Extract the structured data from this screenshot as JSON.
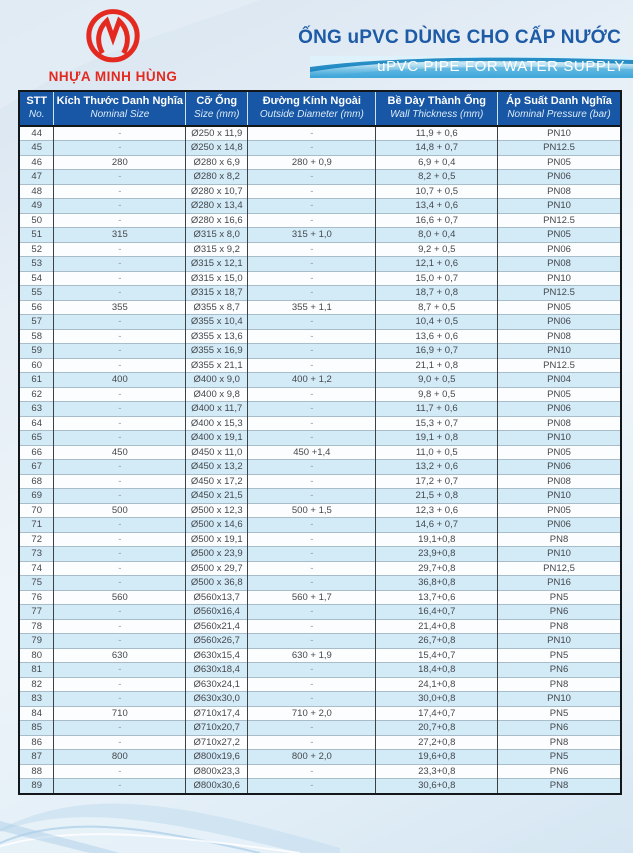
{
  "brand": {
    "name": "NHỰA MINH HÙNG",
    "logo_color": "#e42a20"
  },
  "header": {
    "title_vi": "ỐNG uPVC DÙNG CHO CẤP NƯỚC",
    "title_en": "uPVC PIPE FOR WATER SUPPLY"
  },
  "colors": {
    "accent_blue": "#1757a5",
    "title_blue": "#1d5ba6",
    "brand_red": "#e42a20",
    "alt_row": "#d3eaf7",
    "banner_wave": "#1583c0"
  },
  "table": {
    "columns": [
      {
        "vi": "STT",
        "en": "No."
      },
      {
        "vi": "Kích Thước Danh Nghĩa",
        "en": "Nominal Size"
      },
      {
        "vi": "Cỡ Ống",
        "en": "Size (mm)"
      },
      {
        "vi": "Đường Kính Ngoài",
        "en": "Outside Diameter (mm)"
      },
      {
        "vi": "Bề Dày Thành Ống",
        "en": "Wall Thickness (mm)"
      },
      {
        "vi": "Áp Suất Danh Nghĩa",
        "en": "Nominal Pressure (bar)"
      }
    ],
    "rows": [
      [
        "44",
        "-",
        "Ø250 x 11,9",
        "-",
        "11,9 + 0,6",
        "PN10"
      ],
      [
        "45",
        "-",
        "Ø250 x 14,8",
        "-",
        "14,8 + 0,7",
        "PN12.5"
      ],
      [
        "46",
        "280",
        "Ø280 x 6,9",
        "280 + 0,9",
        "6,9 + 0,4",
        "PN05"
      ],
      [
        "47",
        "-",
        "Ø280 x 8,2",
        "-",
        "8,2 + 0,5",
        "PN06"
      ],
      [
        "48",
        "-",
        "Ø280 x 10,7",
        "-",
        "10,7 + 0,5",
        "PN08"
      ],
      [
        "49",
        "-",
        "Ø280 x 13,4",
        "-",
        "13,4 + 0,6",
        "PN10"
      ],
      [
        "50",
        "-",
        "Ø280 x 16,6",
        "-",
        "16,6 + 0,7",
        "PN12.5"
      ],
      [
        "51",
        "315",
        "Ø315 x 8,0",
        "315 + 1,0",
        "8,0 + 0,4",
        "PN05"
      ],
      [
        "52",
        "-",
        "Ø315 x 9,2",
        "-",
        "9,2 + 0,5",
        "PN06"
      ],
      [
        "53",
        "-",
        "Ø315 x 12,1",
        "-",
        "12,1 + 0,6",
        "PN08"
      ],
      [
        "54",
        "-",
        "Ø315 x 15,0",
        "-",
        "15,0 + 0,7",
        "PN10"
      ],
      [
        "55",
        "-",
        "Ø315 x 18,7",
        "-",
        "18,7 + 0,8",
        "PN12.5"
      ],
      [
        "56",
        "355",
        "Ø355 x 8,7",
        "355 + 1,1",
        "8,7 + 0,5",
        "PN05"
      ],
      [
        "57",
        "-",
        "Ø355 x 10,4",
        "-",
        "10,4 + 0,5",
        "PN06"
      ],
      [
        "58",
        "-",
        "Ø355 x 13,6",
        "-",
        "13,6 + 0,6",
        "PN08"
      ],
      [
        "59",
        "-",
        "Ø355 x 16,9",
        "-",
        "16,9 + 0,7",
        "PN10"
      ],
      [
        "60",
        "-",
        "Ø355 x 21,1",
        "-",
        "21,1 + 0,8",
        "PN12.5"
      ],
      [
        "61",
        "400",
        "Ø400 x 9,0",
        "400 + 1,2",
        "9,0 + 0,5",
        "PN04"
      ],
      [
        "62",
        "-",
        "Ø400 x 9,8",
        "-",
        "9,8 + 0,5",
        "PN05"
      ],
      [
        "63",
        "-",
        "Ø400 x 11,7",
        "-",
        "11,7 + 0,6",
        "PN06"
      ],
      [
        "64",
        "-",
        "Ø400 x 15,3",
        "-",
        "15,3 + 0,7",
        "PN08"
      ],
      [
        "65",
        "-",
        "Ø400 x 19,1",
        "-",
        "19,1 + 0,8",
        "PN10"
      ],
      [
        "66",
        "450",
        "Ø450 x 11,0",
        "450 +1,4",
        "11,0 + 0,5",
        "PN05"
      ],
      [
        "67",
        "-",
        "Ø450 x 13,2",
        "-",
        "13,2 + 0,6",
        "PN06"
      ],
      [
        "68",
        "-",
        "Ø450 x 17,2",
        "-",
        "17,2 + 0,7",
        "PN08"
      ],
      [
        "69",
        "-",
        "Ø450 x 21,5",
        "-",
        "21,5 + 0,8",
        "PN10"
      ],
      [
        "70",
        "500",
        "Ø500 x 12,3",
        "500 + 1,5",
        "12,3 + 0,6",
        "PN05"
      ],
      [
        "71",
        "-",
        "Ø500 x 14,6",
        "-",
        "14,6 + 0,7",
        "PN06"
      ],
      [
        "72",
        "-",
        "Ø500 x 19,1",
        "-",
        "19,1+0,8",
        "PN8"
      ],
      [
        "73",
        "-",
        "Ø500 x 23,9",
        "-",
        "23,9+0,8",
        "PN10"
      ],
      [
        "74",
        "-",
        "Ø500 x 29,7",
        "-",
        "29,7+0,8",
        "PN12,5"
      ],
      [
        "75",
        "-",
        "Ø500 x 36,8",
        "-",
        "36,8+0,8",
        "PN16"
      ],
      [
        "76",
        "560",
        "Ø560x13,7",
        "560 + 1,7",
        "13,7+0,6",
        "PN5"
      ],
      [
        "77",
        "-",
        "Ø560x16,4",
        "-",
        "16,4+0,7",
        "PN6"
      ],
      [
        "78",
        "-",
        "Ø560x21,4",
        "-",
        "21,4+0,8",
        "PN8"
      ],
      [
        "79",
        "-",
        "Ø560x26,7",
        "-",
        "26,7+0,8",
        "PN10"
      ],
      [
        "80",
        "630",
        "Ø630x15,4",
        "630 + 1,9",
        "15,4+0,7",
        "PN5"
      ],
      [
        "81",
        "-",
        "Ø630x18,4",
        "-",
        "18,4+0,8",
        "PN6"
      ],
      [
        "82",
        "-",
        "Ø630x24,1",
        "-",
        "24,1+0,8",
        "PN8"
      ],
      [
        "83",
        "-",
        "Ø630x30,0",
        "-",
        "30,0+0,8",
        "PN10"
      ],
      [
        "84",
        "710",
        "Ø710x17,4",
        "710 + 2,0",
        "17,4+0,7",
        "PN5"
      ],
      [
        "85",
        "-",
        "Ø710x20,7",
        "-",
        "20,7+0,8",
        "PN6"
      ],
      [
        "86",
        "-",
        "Ø710x27,2",
        "-",
        "27,2+0,8",
        "PN8"
      ],
      [
        "87",
        "800",
        "Ø800x19,6",
        "800 + 2,0",
        "19,6+0,8",
        "PN5"
      ],
      [
        "88",
        "-",
        "Ø800x23,3",
        "-",
        "23,3+0,8",
        "PN6"
      ],
      [
        "89",
        "-",
        "Ø800x30,6",
        "-",
        "30,6+0,8",
        "PN8"
      ]
    ]
  }
}
